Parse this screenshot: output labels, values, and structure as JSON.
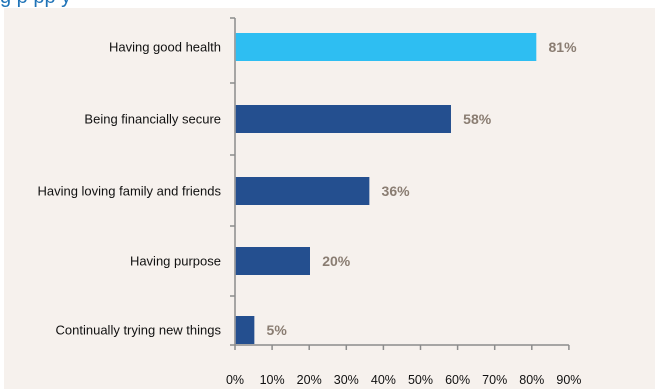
{
  "header": {
    "title_fragment": "g    p   pp y"
  },
  "colors": {
    "highlight": "#2ebef2",
    "bar": "#244f8f",
    "value_label": "#8a7d72",
    "background": "#f6f1ed"
  },
  "chart_data": {
    "type": "bar",
    "orientation": "horizontal",
    "categories": [
      "Having good health",
      "Being financially secure",
      "Having loving family and friends",
      "Having purpose",
      "Continually trying new things"
    ],
    "values": [
      81,
      58,
      36,
      20,
      5
    ],
    "value_labels": [
      "81%",
      "58%",
      "36%",
      "20%",
      "5%"
    ],
    "highlighted_index": 0,
    "xlim": [
      0,
      90
    ],
    "xticks": [
      0,
      10,
      20,
      30,
      40,
      50,
      60,
      70,
      80,
      90
    ],
    "xtick_labels": [
      "0%",
      "10%",
      "20%",
      "30%",
      "40%",
      "50%",
      "60%",
      "70%",
      "80%",
      "90%"
    ],
    "grid": false,
    "legend": "none"
  }
}
